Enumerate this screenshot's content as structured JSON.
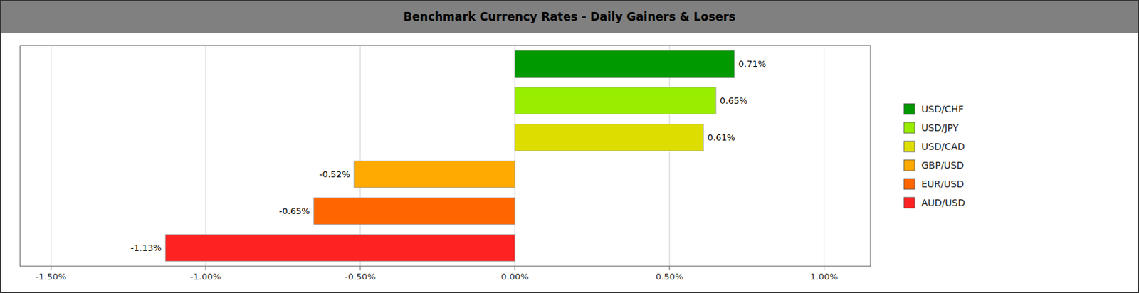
{
  "chart_data": {
    "type": "bar",
    "orientation": "horizontal",
    "title": "Benchmark Currency Rates - Daily Gainers & Losers",
    "categories": [
      "AUD/USD",
      "EUR/USD",
      "GBP/USD",
      "USD/CAD",
      "USD/JPY",
      "USD/CHF"
    ],
    "values": [
      -1.13,
      -0.65,
      -0.52,
      0.61,
      0.65,
      0.71
    ],
    "value_labels": [
      "-1.13%",
      "-0.65%",
      "-0.52%",
      "0.61%",
      "0.65%",
      "0.71%"
    ],
    "colors": [
      "#ff2222",
      "#ff6600",
      "#ffaa00",
      "#dddd00",
      "#99ee00",
      "#009900"
    ],
    "xlim": [
      -1.6,
      1.15
    ],
    "xticks": [
      {
        "value": -1.5,
        "label": "-1.50%"
      },
      {
        "value": -1.0,
        "label": "-1.00%"
      },
      {
        "value": -0.5,
        "label": "-0.50%"
      },
      {
        "value": 0.0,
        "label": "0.00%"
      },
      {
        "value": 0.5,
        "label": "0.50%"
      },
      {
        "value": 1.0,
        "label": "1.00%"
      }
    ],
    "grid": true,
    "data_labels": true,
    "tick_labels": "x",
    "legend": "right"
  }
}
